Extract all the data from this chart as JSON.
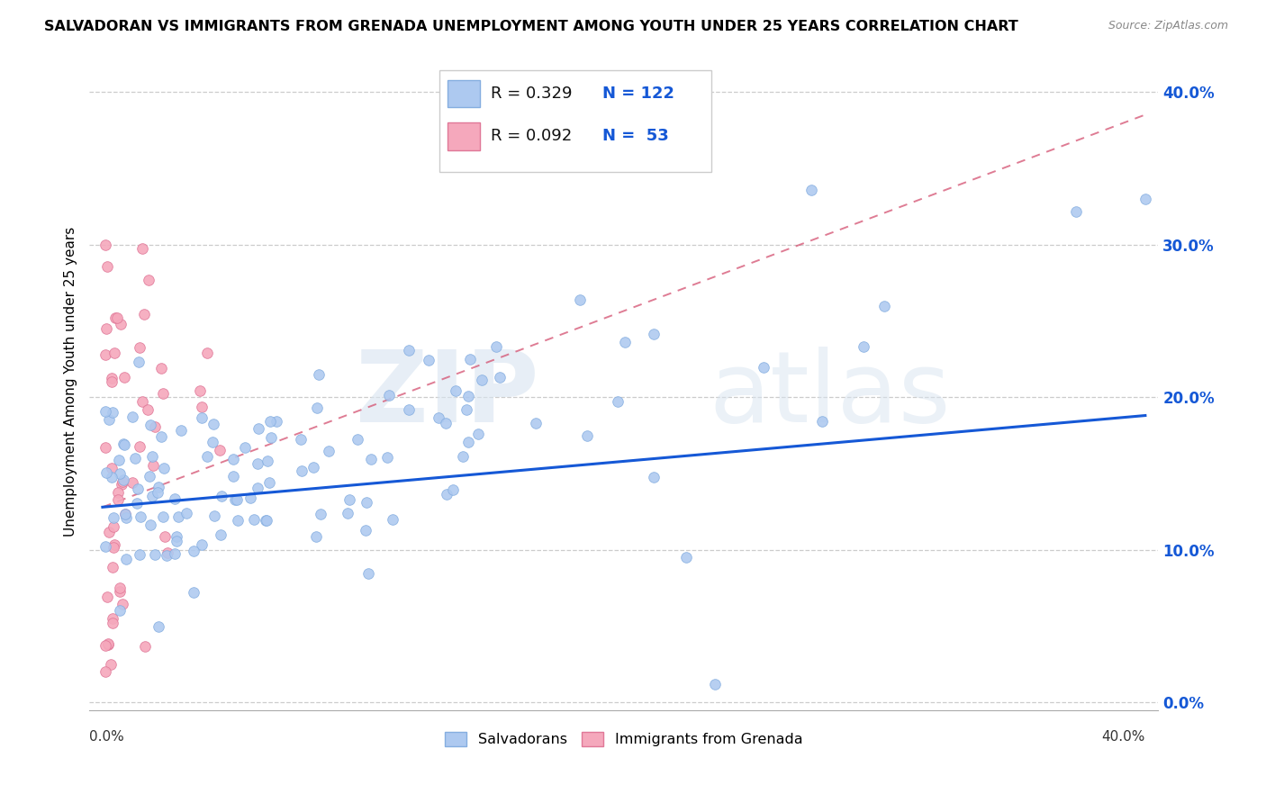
{
  "title": "SALVADORAN VS IMMIGRANTS FROM GRENADA UNEMPLOYMENT AMONG YOUTH UNDER 25 YEARS CORRELATION CHART",
  "source": "Source: ZipAtlas.com",
  "ylabel": "Unemployment Among Youth under 25 years",
  "watermark": "ZIPatlas",
  "xlim": [
    0.0,
    0.4
  ],
  "ylim": [
    0.0,
    0.42
  ],
  "yticks": [
    0.0,
    0.1,
    0.2,
    0.3,
    0.4
  ],
  "ytick_labels": [
    "0.0%",
    "10.0%",
    "20.0%",
    "30.0%",
    "40.0%"
  ],
  "legend_R1": "0.329",
  "legend_N1": "122",
  "legend_R2": "0.092",
  "legend_N2": "53",
  "salvadoran_color": "#adc9f0",
  "salvadoran_edge": "#85aee0",
  "grenada_color": "#f5a8bc",
  "grenada_edge": "#e07898",
  "trend1_color": "#1558d6",
  "trend2_color": "#d45070",
  "trend1_x": [
    0.0,
    0.4
  ],
  "trend1_y": [
    0.128,
    0.188
  ],
  "trend2_x": [
    0.0,
    0.4
  ],
  "trend2_y": [
    0.128,
    0.385
  ],
  "seed": 99
}
